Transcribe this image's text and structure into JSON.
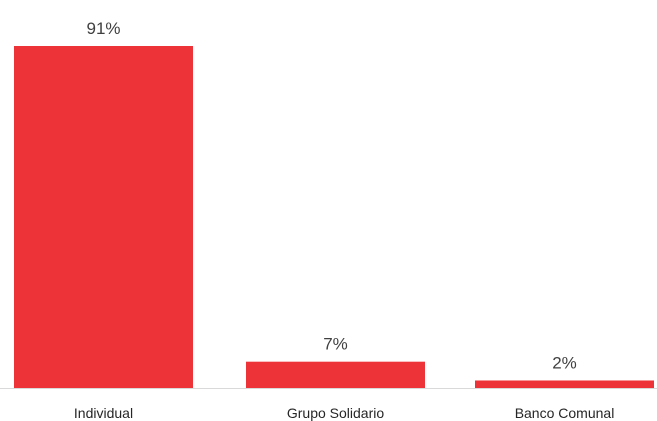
{
  "chart_data": {
    "type": "bar",
    "categories": [
      "Individual",
      "Grupo Solidario",
      "Banco Comunal"
    ],
    "values": [
      91,
      7,
      2
    ],
    "value_labels": [
      "91%",
      "7%",
      "2%"
    ],
    "unit": "%",
    "title": "",
    "xlabel": "",
    "ylabel": "",
    "ylim": [
      0,
      91
    ],
    "grid": false,
    "legend": "none",
    "bar_color": "#ee3338",
    "axis_color": "#d9d9d9"
  }
}
